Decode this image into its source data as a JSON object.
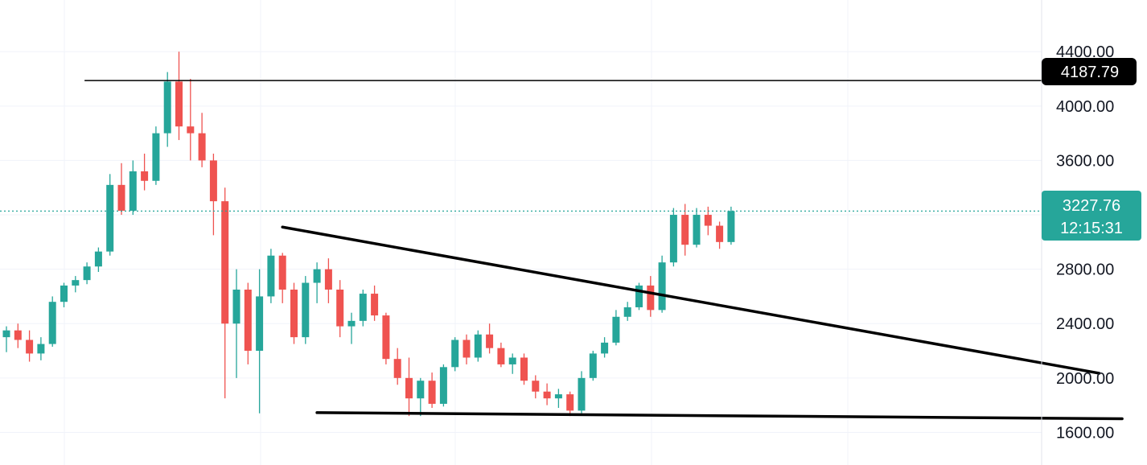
{
  "chart_data": {
    "type": "candlestick",
    "title": "",
    "xlabel": "",
    "ylabel": "",
    "ylim": [
      1360,
      4780
    ],
    "y_ticks": [
      "4400.00",
      "4000.00",
      "3600.00",
      "3200.00",
      "2800.00",
      "2400.00",
      "2000.00",
      "1600.00"
    ],
    "y_tick_values": [
      4400,
      4000,
      3600,
      3200,
      2800,
      2400,
      2000,
      1600
    ],
    "visible_y_ticks": [
      "4400.00",
      "4000.00",
      "3600.00",
      "2800.00",
      "2400.00",
      "2000.00",
      "1600.00"
    ],
    "grid": true,
    "colors": {
      "up": "#26a69a",
      "down": "#ef5350",
      "last_price": "#26a69a",
      "level_badge": "#000000",
      "grid": "#f0f3fa",
      "text": "#131722"
    },
    "price_level": {
      "value": 4187.79,
      "label": "4187.79"
    },
    "last_price": {
      "value": 3227.76,
      "label": "3227.76",
      "countdown": "12:15:31"
    },
    "trendlines": [
      {
        "name": "descending-resistance",
        "from": [
          24,
          3110
        ],
        "to": [
          95,
          2035
        ]
      },
      {
        "name": "support",
        "from": [
          27,
          1745
        ],
        "to": [
          97,
          1700
        ]
      }
    ],
    "candles": [
      [
        2300,
        2380,
        2190,
        2350
      ],
      [
        2350,
        2400,
        2220,
        2280
      ],
      [
        2280,
        2350,
        2120,
        2180
      ],
      [
        2180,
        2300,
        2130,
        2250
      ],
      [
        2250,
        2600,
        2230,
        2560
      ],
      [
        2560,
        2700,
        2520,
        2680
      ],
      [
        2680,
        2750,
        2630,
        2720
      ],
      [
        2720,
        2850,
        2690,
        2820
      ],
      [
        2820,
        2960,
        2780,
        2930
      ],
      [
        2930,
        3500,
        2900,
        3420
      ],
      [
        3420,
        3580,
        3200,
        3230
      ],
      [
        3230,
        3600,
        3200,
        3520
      ],
      [
        3520,
        3650,
        3380,
        3450
      ],
      [
        3450,
        3850,
        3420,
        3800
      ],
      [
        3800,
        4250,
        3700,
        4180
      ],
      [
        4180,
        4400,
        3750,
        3850
      ],
      [
        3850,
        4200,
        3600,
        3800
      ],
      [
        3800,
        3950,
        3550,
        3600
      ],
      [
        3600,
        3650,
        3050,
        3300
      ],
      [
        3300,
        3400,
        1850,
        2400
      ],
      [
        2400,
        2800,
        2000,
        2650
      ],
      [
        2650,
        2700,
        2100,
        2200
      ],
      [
        2200,
        2800,
        1740,
        2600
      ],
      [
        2600,
        2950,
        2550,
        2900
      ],
      [
        2900,
        2920,
        2550,
        2650
      ],
      [
        2650,
        2700,
        2250,
        2300
      ],
      [
        2300,
        2750,
        2250,
        2700
      ],
      [
        2700,
        2850,
        2550,
        2800
      ],
      [
        2800,
        2880,
        2550,
        2650
      ],
      [
        2650,
        2720,
        2300,
        2380
      ],
      [
        2380,
        2480,
        2250,
        2420
      ],
      [
        2420,
        2650,
        2380,
        2620
      ],
      [
        2620,
        2680,
        2420,
        2460
      ],
      [
        2460,
        2480,
        2100,
        2140
      ],
      [
        2140,
        2220,
        1950,
        2000
      ],
      [
        2000,
        2150,
        1720,
        1850
      ],
      [
        1850,
        2000,
        1720,
        1980
      ],
      [
        1980,
        2040,
        1780,
        1810
      ],
      [
        1810,
        2100,
        1790,
        2080
      ],
      [
        2080,
        2300,
        2050,
        2280
      ],
      [
        2280,
        2320,
        2100,
        2150
      ],
      [
        2150,
        2350,
        2120,
        2320
      ],
      [
        2320,
        2400,
        2180,
        2220
      ],
      [
        2220,
        2260,
        2080,
        2100
      ],
      [
        2100,
        2180,
        2030,
        2150
      ],
      [
        2150,
        2180,
        1950,
        1980
      ],
      [
        1980,
        2020,
        1850,
        1900
      ],
      [
        1900,
        1960,
        1800,
        1850
      ],
      [
        1850,
        1920,
        1780,
        1880
      ],
      [
        1880,
        1900,
        1720,
        1760
      ],
      [
        1760,
        2050,
        1740,
        2000
      ],
      [
        2000,
        2200,
        1980,
        2180
      ],
      [
        2180,
        2300,
        2150,
        2260
      ],
      [
        2260,
        2500,
        2240,
        2450
      ],
      [
        2450,
        2560,
        2420,
        2520
      ],
      [
        2520,
        2700,
        2500,
        2680
      ],
      [
        2680,
        2750,
        2450,
        2500
      ],
      [
        2500,
        2900,
        2480,
        2850
      ],
      [
        2850,
        3250,
        2820,
        3200
      ],
      [
        3200,
        3280,
        2900,
        2980
      ],
      [
        2980,
        3250,
        2960,
        3200
      ],
      [
        3200,
        3260,
        3050,
        3120
      ],
      [
        3120,
        3150,
        2950,
        3000
      ],
      [
        3000,
        3260,
        2980,
        3228
      ]
    ],
    "candle_x": [
      0,
      1,
      2,
      3,
      4,
      5,
      6,
      7,
      8,
      9,
      10,
      11,
      12,
      13,
      14,
      15,
      16,
      17,
      18,
      19,
      20,
      21,
      22,
      23,
      24,
      25,
      26,
      27,
      28,
      29,
      30,
      31,
      32,
      33,
      34,
      35,
      36,
      37,
      38,
      39,
      40,
      41,
      42,
      43,
      44,
      45,
      46,
      47,
      48,
      49,
      50,
      51,
      52,
      53,
      54,
      55,
      56,
      57,
      58,
      59,
      60,
      61,
      62,
      63
    ]
  }
}
